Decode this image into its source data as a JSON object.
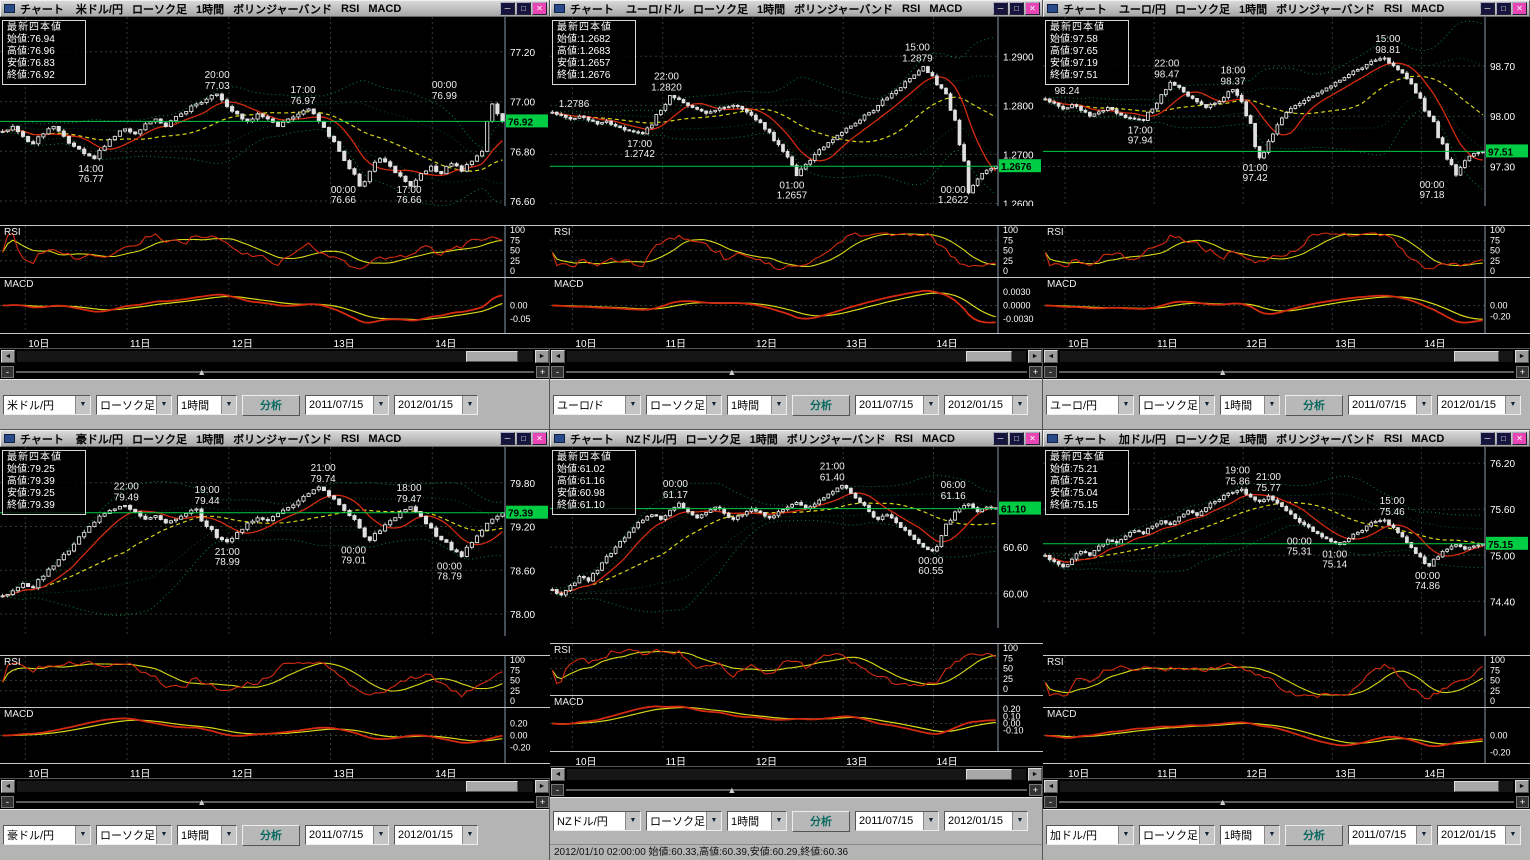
{
  "colors": {
    "accent_green": "#00cc44",
    "grid": "#2f3d31",
    "axis_line": "#8899aa",
    "band_green": "#00a246",
    "ma_red": "#d42a10",
    "ma_yellow": "#d8d818",
    "candle": "#e0e0e0",
    "close_button": "#e845b5",
    "titlebar_bg": "#c0c0c0",
    "toolbar_bg": "#b4b4b4",
    "marker_text": "#000000"
  },
  "icons": {
    "minimize": "─",
    "maximize": "□",
    "close": "✕",
    "scroll_left": "◄",
    "scroll_right": "►",
    "slider_thumb": "▲",
    "dropdown_arrow": "▼",
    "zoom_out": "-",
    "zoom_in": "+"
  },
  "date_labels": [
    "10日",
    "11日",
    "12日",
    "13日",
    "14日"
  ],
  "panels": [
    {
      "title": {
        "app": "チャート",
        "pair": "米ドル/円",
        "candle": "ローソク足",
        "timeframe": "1時間",
        "bands": "ボリンジャーバンド",
        "rsi": "RSI",
        "macd": "MACD"
      },
      "quote": {
        "header": "最新四本値",
        "open_label": "始値:",
        "open": "76.94",
        "high_label": "高値:",
        "high": "76.96",
        "low_label": "安値:",
        "low": "76.83",
        "close_label": "終値:",
        "close": "76.92"
      },
      "axis": {
        "ticks": [
          "77.20",
          "77.00",
          "76.80",
          "76.60"
        ],
        "ylim": [
          76.58,
          77.34
        ],
        "marker": "76.92"
      },
      "annotations": [
        {
          "time": "14:00",
          "price": "76.77",
          "x": 0.18,
          "v": 76.77,
          "side": "below"
        },
        {
          "time": "20:00",
          "price": "77.03",
          "x": 0.43,
          "v": 77.03,
          "side": "above"
        },
        {
          "time": "17:00",
          "price": "76.97",
          "x": 0.6,
          "v": 76.97,
          "side": "above"
        },
        {
          "time": "00:00",
          "price": "76.66",
          "x": 0.68,
          "v": 76.66,
          "side": "below"
        },
        {
          "time": "17:00",
          "price": "76.66",
          "x": 0.81,
          "v": 76.66,
          "side": "below"
        },
        {
          "time": "00:00",
          "price": "76.99",
          "x": 0.88,
          "v": 76.99,
          "side": "above"
        }
      ],
      "price_path": [
        76.88,
        76.9,
        76.86,
        76.83,
        76.87,
        76.9,
        76.86,
        76.82,
        76.79,
        76.77,
        76.82,
        76.86,
        76.89,
        76.87,
        76.91,
        76.93,
        76.9,
        76.94,
        76.96,
        76.99,
        77.01,
        77.03,
        76.98,
        76.95,
        76.92,
        76.95,
        76.93,
        76.9,
        76.93,
        76.95,
        76.97,
        76.92,
        76.86,
        76.8,
        76.73,
        76.66,
        76.72,
        76.77,
        76.74,
        76.7,
        76.66,
        76.71,
        76.74,
        76.71,
        76.75,
        76.72,
        76.76,
        76.8,
        76.99,
        76.92
      ],
      "rsi": {
        "label": "RSI",
        "ticks": [
          "100",
          "75",
          "50",
          "25",
          "0"
        ]
      },
      "macd": {
        "label": "MACD",
        "ticks": [
          "0.00",
          "-0.05"
        ]
      },
      "toolbar": {
        "pair": "米ドル/円",
        "candle": "ローソク足",
        "timeframe": "1時間",
        "analyze": "分析",
        "date_from": "2011/07/15",
        "date_to": "2012/01/15"
      }
    },
    {
      "title": {
        "app": "チャート",
        "pair": "ユーロ/ドル",
        "candle": "ローソク足",
        "timeframe": "1時間",
        "bands": "ボリンジャーバンド",
        "rsi": "RSI",
        "macd": "MACD"
      },
      "quote": {
        "header": "最新四本値",
        "open_label": "始値:",
        "open": "1.2682",
        "high_label": "高値:",
        "high": "1.2683",
        "low_label": "安値:",
        "low": "1.2657",
        "close_label": "終値:",
        "close": "1.2676"
      },
      "axis": {
        "ticks": [
          "1.2900",
          "1.2800",
          "1.2700",
          "1.2600"
        ],
        "ylim": [
          1.2595,
          1.298
        ],
        "marker": "1.2676"
      },
      "annotations": [
        {
          "time": "",
          "price": "1.2786",
          "x": 0.04,
          "v": 1.2786,
          "side": "above"
        },
        {
          "time": "17:00",
          "price": "1.2742",
          "x": 0.2,
          "v": 1.2742,
          "side": "below"
        },
        {
          "time": "22:00",
          "price": "1.2820",
          "x": 0.26,
          "v": 1.282,
          "side": "above"
        },
        {
          "time": "01:00",
          "price": "1.2657",
          "x": 0.54,
          "v": 1.2657,
          "side": "below"
        },
        {
          "time": "15:00",
          "price": "1.2879",
          "x": 0.82,
          "v": 1.2879,
          "side": "above"
        },
        {
          "time": "00:00",
          "price": "1.2622",
          "x": 0.9,
          "v": 1.2622,
          "side": "below"
        }
      ],
      "price_path": [
        1.2786,
        1.278,
        1.2772,
        1.2778,
        1.277,
        1.2762,
        1.2768,
        1.2758,
        1.275,
        1.2746,
        1.2742,
        1.276,
        1.279,
        1.282,
        1.2812,
        1.28,
        1.2792,
        1.2784,
        1.279,
        1.2796,
        1.28,
        1.2792,
        1.278,
        1.2765,
        1.2745,
        1.272,
        1.2695,
        1.2657,
        1.268,
        1.27,
        1.2715,
        1.273,
        1.2745,
        1.2758,
        1.277,
        1.2785,
        1.28,
        1.2815,
        1.283,
        1.2848,
        1.2862,
        1.2879,
        1.286,
        1.2835,
        1.279,
        1.272,
        1.2622,
        1.265,
        1.2668,
        1.2676
      ],
      "rsi": {
        "label": "RSI",
        "ticks": [
          "100",
          "75",
          "50",
          "25",
          "0"
        ]
      },
      "macd": {
        "label": "MACD",
        "ticks": [
          "0.0030",
          "0.0000",
          "-0.0030"
        ]
      },
      "toolbar": {
        "pair": "ユーロ/ド",
        "candle": "ローソク足",
        "timeframe": "1時間",
        "analyze": "分析",
        "date_from": "2011/07/15",
        "date_to": "2012/01/15"
      }
    },
    {
      "title": {
        "app": "チャート",
        "pair": "ユーロ/円",
        "candle": "ローソク足",
        "timeframe": "1時間",
        "bands": "ボリンジャーバンド",
        "rsi": "RSI",
        "macd": "MACD"
      },
      "quote": {
        "header": "最新四本値",
        "open_label": "始値:",
        "open": "97.58",
        "high_label": "高値:",
        "high": "97.65",
        "low_label": "安値:",
        "low": "97.19",
        "close_label": "終値:",
        "close": "97.51"
      },
      "axis": {
        "ticks": [
          "98.70",
          "98.00",
          "97.30"
        ],
        "ylim": [
          96.75,
          99.38
        ],
        "marker": "97.51"
      },
      "annotations": [
        {
          "time": "",
          "price": "98.24",
          "x": 0.02,
          "v": 98.24,
          "side": "above"
        },
        {
          "time": "17:00",
          "price": "97.94",
          "x": 0.22,
          "v": 97.94,
          "side": "below"
        },
        {
          "time": "22:00",
          "price": "98.47",
          "x": 0.28,
          "v": 98.47,
          "side": "above"
        },
        {
          "time": "18:00",
          "price": "98.37",
          "x": 0.43,
          "v": 98.37,
          "side": "above"
        },
        {
          "time": "01:00",
          "price": "97.42",
          "x": 0.48,
          "v": 97.42,
          "side": "below"
        },
        {
          "time": "15:00",
          "price": "98.81",
          "x": 0.78,
          "v": 98.81,
          "side": "above"
        },
        {
          "time": "00:00",
          "price": "97.18",
          "x": 0.88,
          "v": 97.18,
          "side": "below"
        }
      ],
      "price_path": [
        98.24,
        98.18,
        98.1,
        98.16,
        98.08,
        98.0,
        98.06,
        98.12,
        98.04,
        97.98,
        97.96,
        97.94,
        98.1,
        98.3,
        98.47,
        98.4,
        98.28,
        98.2,
        98.12,
        98.18,
        98.26,
        98.37,
        98.2,
        97.9,
        97.42,
        97.65,
        97.88,
        98.05,
        98.15,
        98.22,
        98.28,
        98.35,
        98.42,
        98.5,
        98.58,
        98.65,
        98.72,
        98.78,
        98.81,
        98.7,
        98.6,
        98.45,
        98.25,
        98.0,
        97.7,
        97.4,
        97.18,
        97.38,
        97.48,
        97.51
      ],
      "rsi": {
        "label": "RSI",
        "ticks": [
          "100",
          "75",
          "50",
          "25",
          "0"
        ]
      },
      "macd": {
        "label": "MACD",
        "ticks": [
          "0.00",
          "-0.20"
        ]
      },
      "toolbar": {
        "pair": "ユーロ/円",
        "candle": "ローソク足",
        "timeframe": "1時間",
        "analyze": "分析",
        "date_from": "2011/07/15",
        "date_to": "2012/01/15"
      }
    },
    {
      "title": {
        "app": "チャート",
        "pair": "豪ドル/円",
        "candle": "ローソク足",
        "timeframe": "1時間",
        "bands": "ボリンジャーバンド",
        "rsi": "RSI",
        "macd": "MACD"
      },
      "quote": {
        "header": "最新四本値",
        "open_label": "始値:",
        "open": "79.25",
        "high_label": "高値:",
        "high": "79.39",
        "low_label": "安値:",
        "low": "79.25",
        "close_label": "終値:",
        "close": "79.39"
      },
      "axis": {
        "ticks": [
          "79.80",
          "79.20",
          "78.60",
          "78.00"
        ],
        "ylim": [
          77.7,
          80.29
        ],
        "marker": "79.39"
      },
      "annotations": [
        {
          "time": "22:00",
          "price": "79.49",
          "x": 0.25,
          "v": 79.49,
          "side": "above"
        },
        {
          "time": "19:00",
          "price": "79.44",
          "x": 0.41,
          "v": 79.44,
          "side": "above"
        },
        {
          "time": "21:00",
          "price": "78.99",
          "x": 0.45,
          "v": 78.99,
          "side": "below"
        },
        {
          "time": "21:00",
          "price": "79.74",
          "x": 0.64,
          "v": 79.74,
          "side": "above"
        },
        {
          "time": "00:00",
          "price": "79.01",
          "x": 0.7,
          "v": 79.01,
          "side": "below"
        },
        {
          "time": "18:00",
          "price": "79.47",
          "x": 0.81,
          "v": 79.47,
          "side": "above"
        },
        {
          "time": "00:00",
          "price": "78.79",
          "x": 0.89,
          "v": 78.79,
          "side": "below"
        }
      ],
      "price_path": [
        78.25,
        78.32,
        78.42,
        78.36,
        78.52,
        78.66,
        78.82,
        78.96,
        79.12,
        79.26,
        79.38,
        79.44,
        79.49,
        79.4,
        79.3,
        79.35,
        79.25,
        79.3,
        79.38,
        79.44,
        79.2,
        79.05,
        78.99,
        79.12,
        79.25,
        79.32,
        79.28,
        79.38,
        79.46,
        79.55,
        79.65,
        79.74,
        79.62,
        79.5,
        79.35,
        79.18,
        79.01,
        79.14,
        79.28,
        79.4,
        79.47,
        79.34,
        79.18,
        79.02,
        78.88,
        78.79,
        78.98,
        79.15,
        79.3,
        79.39
      ],
      "rsi": {
        "label": "RSI",
        "ticks": [
          "100",
          "75",
          "50",
          "25",
          "0"
        ]
      },
      "macd": {
        "label": "MACD",
        "ticks": [
          "0.20",
          "0.00",
          "-0.20"
        ]
      },
      "toolbar": {
        "pair": "豪ドル/円",
        "candle": "ローソク足",
        "timeframe": "1時間",
        "analyze": "分析",
        "date_from": "2011/07/15",
        "date_to": "2012/01/15"
      }
    },
    {
      "title": {
        "app": "チャート",
        "pair": "NZドル/円",
        "candle": "ローソク足",
        "timeframe": "1時間",
        "bands": "ボリンジャーバンド",
        "rsi": "RSI",
        "macd": "MACD"
      },
      "quote": {
        "header": "最新四本値",
        "open_label": "始値:",
        "open": "61.02",
        "high_label": "高値:",
        "high": "61.16",
        "low_label": "安値:",
        "low": "60.98",
        "close_label": "終値:",
        "close": "61.10"
      },
      "axis": {
        "ticks": [
          "60.60",
          "60.00"
        ],
        "ylim": [
          59.55,
          61.9
        ],
        "marker": "61.10"
      },
      "annotations": [
        {
          "time": "00:00",
          "price": "61.17",
          "x": 0.28,
          "v": 61.17,
          "side": "above"
        },
        {
          "time": "21:00",
          "price": "61.40",
          "x": 0.63,
          "v": 61.4,
          "side": "above"
        },
        {
          "time": "00:00",
          "price": "60.55",
          "x": 0.85,
          "v": 60.55,
          "side": "below"
        },
        {
          "time": "06:00",
          "price": "61.16",
          "x": 0.9,
          "v": 61.16,
          "side": "above"
        }
      ],
      "price_path": [
        60.05,
        59.98,
        60.1,
        60.22,
        60.16,
        60.3,
        60.48,
        60.6,
        60.72,
        60.85,
        60.95,
        61.02,
        60.96,
        61.08,
        61.17,
        61.06,
        60.98,
        61.05,
        61.12,
        61.04,
        60.96,
        61.02,
        61.1,
        61.05,
        60.98,
        61.06,
        61.12,
        61.18,
        61.1,
        61.16,
        61.24,
        61.32,
        61.4,
        61.3,
        61.18,
        61.06,
        60.96,
        61.02,
        60.92,
        60.82,
        60.7,
        60.6,
        60.55,
        60.75,
        60.95,
        61.1,
        61.16,
        61.06,
        61.12,
        61.1
      ],
      "rsi": {
        "label": "RSI",
        "ticks": [
          "100",
          "75",
          "50",
          "25",
          "0"
        ]
      },
      "macd": {
        "label": "MACD",
        "ticks": [
          "0.20",
          "0.10",
          "0.00",
          "-0.10"
        ]
      },
      "toolbar": {
        "pair": "NZドル/円",
        "candle": "ローソク足",
        "timeframe": "1時間",
        "analyze": "分析",
        "date_from": "2011/07/15",
        "date_to": "2012/01/15"
      },
      "status": "2012/01/10 02:00:00 始値:60.33,高値:60.39,安値:60.29,終値:60.36"
    },
    {
      "title": {
        "app": "チャート",
        "pair": "加ドル/円",
        "candle": "ローソク足",
        "timeframe": "1時間",
        "bands": "ボリンジャーバンド",
        "rsi": "RSI",
        "macd": "MACD"
      },
      "quote": {
        "header": "最新四本値",
        "open_label": "始値:",
        "open": "75.21",
        "high_label": "高値:",
        "high": "75.21",
        "low_label": "安値:",
        "low": "75.04",
        "close_label": "終値:",
        "close": "75.15"
      },
      "axis": {
        "ticks": [
          "76.20",
          "75.60",
          "75.00",
          "74.40"
        ],
        "ylim": [
          73.95,
          76.41
        ],
        "marker": "75.15"
      },
      "annotations": [
        {
          "time": "19:00",
          "price": "75.86",
          "x": 0.44,
          "v": 75.86,
          "side": "above"
        },
        {
          "time": "21:00",
          "price": "75.77",
          "x": 0.51,
          "v": 75.77,
          "side": "above"
        },
        {
          "time": "00:00",
          "price": "75.31",
          "x": 0.58,
          "v": 75.31,
          "side": "below"
        },
        {
          "time": "01:00",
          "price": "75.14",
          "x": 0.66,
          "v": 75.14,
          "side": "below"
        },
        {
          "time": "15:00",
          "price": "75.46",
          "x": 0.79,
          "v": 75.46,
          "side": "above"
        },
        {
          "time": "00:00",
          "price": "74.86",
          "x": 0.87,
          "v": 74.86,
          "side": "below"
        }
      ],
      "price_path": [
        75.0,
        74.92,
        74.85,
        74.95,
        75.05,
        75.0,
        75.12,
        75.2,
        75.15,
        75.25,
        75.32,
        75.28,
        75.38,
        75.45,
        75.4,
        75.5,
        75.58,
        75.52,
        75.62,
        75.7,
        75.78,
        75.82,
        75.86,
        75.76,
        75.7,
        75.77,
        75.68,
        75.58,
        75.48,
        75.4,
        75.31,
        75.24,
        75.18,
        75.14,
        75.22,
        75.3,
        75.38,
        75.44,
        75.46,
        75.36,
        75.24,
        75.1,
        74.98,
        74.86,
        74.98,
        75.08,
        75.14,
        75.08,
        75.12,
        75.15
      ],
      "rsi": {
        "label": "RSI",
        "ticks": [
          "100",
          "75",
          "50",
          "25",
          "0"
        ]
      },
      "macd": {
        "label": "MACD",
        "ticks": [
          "0.00",
          "-0.20"
        ]
      },
      "toolbar": {
        "pair": "加ドル/円",
        "candle": "ローソク足",
        "timeframe": "1時間",
        "analyze": "分析",
        "date_from": "2011/07/15",
        "date_to": "2012/01/15"
      }
    }
  ]
}
